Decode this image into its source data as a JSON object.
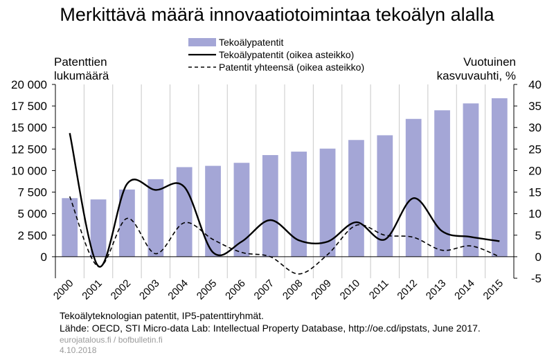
{
  "chart_data": {
    "type": "bar",
    "title": "Merkittävä määrä innovaatiotoimintaa tekoälyn alalla",
    "ylabel_left_lines": [
      "Patenttien",
      "lukumäärä"
    ],
    "ylabel_right_lines": [
      "Vuotuinen",
      "kasvuvauhti, %"
    ],
    "categories": [
      "2000",
      "2001",
      "2002",
      "2003",
      "2004",
      "2005",
      "2006",
      "2007",
      "2008",
      "2009",
      "2010",
      "2011",
      "2012",
      "2013",
      "2014",
      "2015"
    ],
    "ylim_left": [
      -2500,
      20000
    ],
    "ylim_right": [
      -5,
      40
    ],
    "yticks_left": [
      "0",
      "2 500",
      "5 000",
      "7 500",
      "10 000",
      "12 500",
      "15 000",
      "17 500",
      "20 000"
    ],
    "yticks_left_values": [
      0,
      2500,
      5000,
      7500,
      10000,
      12500,
      15000,
      17500,
      20000
    ],
    "yticks_right": [
      "-5",
      "0",
      "5",
      "10",
      "15",
      "20",
      "25",
      "30",
      "35",
      "40"
    ],
    "yticks_right_values": [
      -5,
      0,
      5,
      10,
      15,
      20,
      25,
      30,
      35,
      40
    ],
    "grid": "vertical",
    "legend_position": "top-center",
    "series": [
      {
        "name": "Tekoälypatentit",
        "type": "bar",
        "axis": "left",
        "color": "#a4a6d6",
        "values": [
          6800,
          6650,
          7800,
          9000,
          10400,
          10550,
          10900,
          11800,
          12200,
          12550,
          13550,
          14100,
          16000,
          17000,
          17800,
          18400
        ]
      },
      {
        "name": "Tekoälypatentit (oikea asteikko)",
        "type": "line",
        "axis": "right",
        "style": "solid",
        "color": "#000000",
        "values": [
          28.7,
          -2.2,
          16.9,
          15.5,
          16.2,
          1.0,
          3.5,
          8.5,
          3.8,
          3.5,
          8.0,
          4.0,
          13.6,
          5.9,
          4.6,
          3.6
        ]
      },
      {
        "name": "Patentit yhteensä (oikea asteikko)",
        "type": "line",
        "axis": "right",
        "style": "dashed",
        "color": "#000000",
        "values": [
          14.0,
          -2.3,
          8.9,
          0.7,
          7.9,
          4.0,
          1.0,
          0.0,
          -4.0,
          0.5,
          7.3,
          5.0,
          4.5,
          1.5,
          2.5,
          0.0
        ]
      }
    ]
  },
  "notes": {
    "line1": "Tekoälyteknologian patentit, IP5-patenttiryhmät.",
    "line2": "Lähde: OECD, STI Micro-data Lab: Intellectual Property Database, http://oe.cd/ipstats,  June 2017.",
    "site": "eurojatalous.fi / bofbulletin.fi",
    "date": "4.10.2018"
  }
}
